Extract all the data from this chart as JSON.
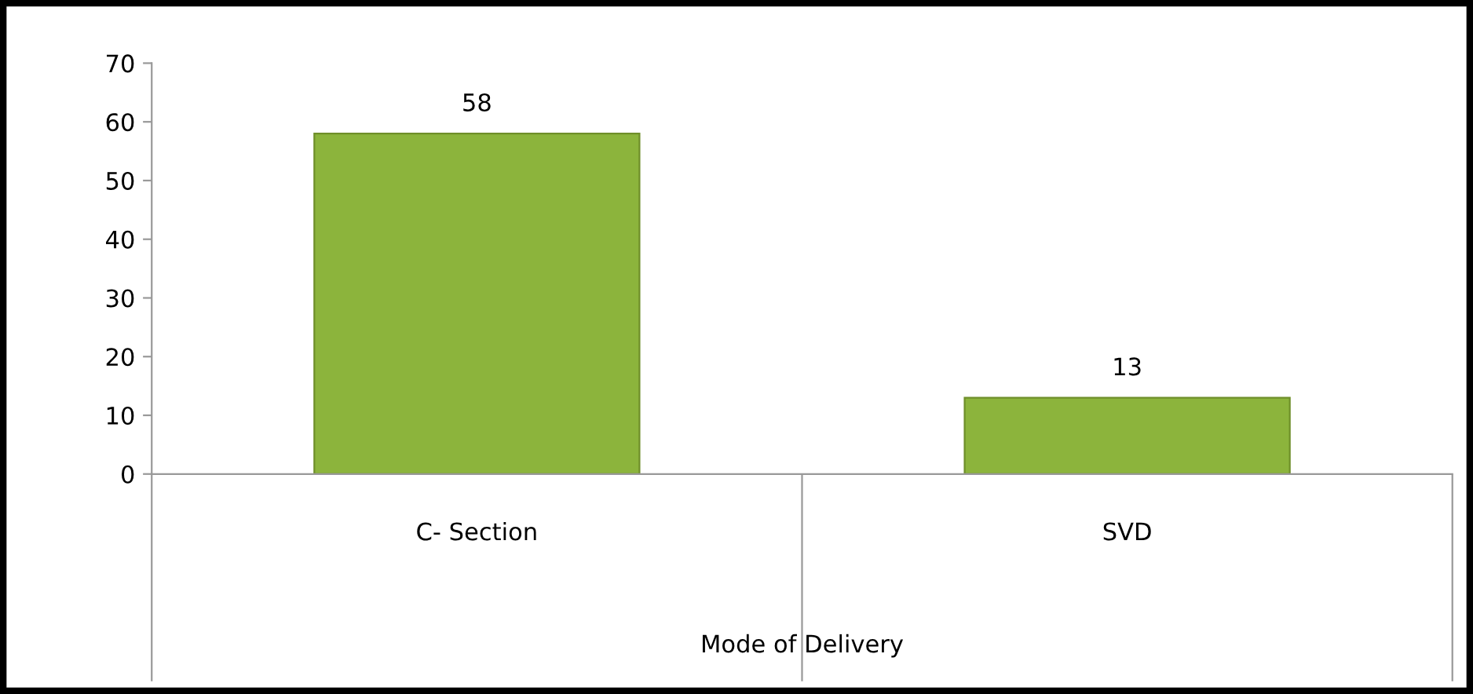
{
  "chart_data": {
    "type": "bar",
    "xlabel": "Mode of Delivery",
    "categories": [
      "C- Section",
      "SVD"
    ],
    "values": [
      58,
      13
    ],
    "color": "#8cb43c",
    "ylim": [
      0,
      70
    ],
    "yticks": [
      0,
      10,
      20,
      30,
      40,
      50,
      60,
      70
    ],
    "data_labels": true,
    "grid": false,
    "legend": false
  }
}
